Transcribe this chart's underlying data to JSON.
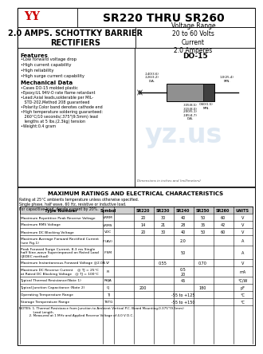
{
  "title": "SR220 THRU SR260",
  "subtitle": "2.0 AMPS. SCHOTTKY BARRIER\nRECTIFIERS",
  "voltage_range": "Voltage Range\n20 to 60 Volts\nCurrent\n2.0 Amperes",
  "package": "DO-15",
  "features_title": "Features",
  "features": [
    "•Low forward voltage drop",
    "•High current capability",
    "•High reliability",
    "•High surge current capability"
  ],
  "mech_title": "Mechanical Data",
  "mech": [
    "•Cases DO-15 molded plastic",
    "•Epoxy:UL 94V-O rate flame retardant",
    "•Lead:Axial leads,solderable per MIL-",
    "   STD-202,Method 208 guaranteed",
    "•Polarity:Color band denotes cathode end",
    "•High temperature soldering guaranteed:",
    "   260°C/10 seconds/.375\"(9.5mm) lead",
    "   lengths at 5 lbs.(2.3kg) tension",
    "•Weight:0.4 gram"
  ],
  "table_title": "MAXIMUM RATINGS AND ELECTRICAL CHARACTERISTICS",
  "table_note": "Rating at 25°C ambients temperature unless otherwise specified.\nSingle phase, half wave, 60 Hz, resistive or inductive load.\nFor capacitive load, derate current by 20%.",
  "col_headers": [
    "Type Number",
    "Symbol",
    "SR220",
    "SR230",
    "SR240",
    "SR250",
    "SR260",
    "UNITS"
  ],
  "rows": [
    [
      "Maximum Repetitive Peak Reverse Voltage",
      "VRRM",
      "20",
      "30",
      "40",
      "50",
      "60",
      "V"
    ],
    [
      "Maximum RMS Voltage",
      "VRMS",
      "14",
      "21",
      "28",
      "35",
      "42",
      "V"
    ],
    [
      "Maximum DC Blocking Voltage",
      "VDC",
      "20",
      "30",
      "40",
      "50",
      "60",
      "V"
    ],
    [
      "Maximum Average Forward Rectified Current\n(see Fig.1)",
      "IF(AV)",
      "",
      "2.0",
      "",
      "",
      "",
      "A"
    ],
    [
      "Peak Forward Surge Current, 8.3 ms Single\nhalf Sine-wave Superimposed on Rated Load\n(JEDEC method)",
      "IFSM",
      "",
      "50",
      "",
      "",
      "",
      "A"
    ],
    [
      "Maximum Instantaneous Forward Voltage @2.0A",
      "VF",
      "",
      "0.55",
      "",
      "0.70",
      "",
      "V"
    ],
    [
      "Maximum DC Reverse Current    @ TJ = 25°C\nat Rated DC Blocking Voltage   @ TJ = 100°C",
      "IR",
      "",
      "0.5\n20",
      "",
      "",
      "",
      "mA"
    ],
    [
      "Typical Thermal Resistance(Note 1)",
      "RθJA",
      "",
      "45",
      "",
      "",
      "",
      "°C/W"
    ],
    [
      "Typical Junction Capacitance (Note 2)",
      "CJ",
      "200",
      "",
      "",
      "180",
      "",
      "pF"
    ],
    [
      "Operating Temperature Range",
      "TJ",
      "",
      "-55 to +125",
      "",
      "",
      "",
      "°C"
    ],
    [
      "Storage Temperature Range",
      "TSTG",
      "",
      "-55 to +150",
      "",
      "",
      "",
      "°C"
    ]
  ],
  "notes": "NOTES: 1. Thermal Resistance from Junction to Ambient Vertical P.C. Board Mounting,0.375\"(9.5mm)\n              Lead Length.\n          2. Measured at 1 MHz and Applied Reverse Voltage of 4.0 V D.C.",
  "logo_color": "#cc0000",
  "header_bg": "#d0d0d0",
  "border_color": "#000000",
  "text_color": "#000000",
  "table_header_bg": "#c8c8c8",
  "watermark_color": "#b0c8e0"
}
